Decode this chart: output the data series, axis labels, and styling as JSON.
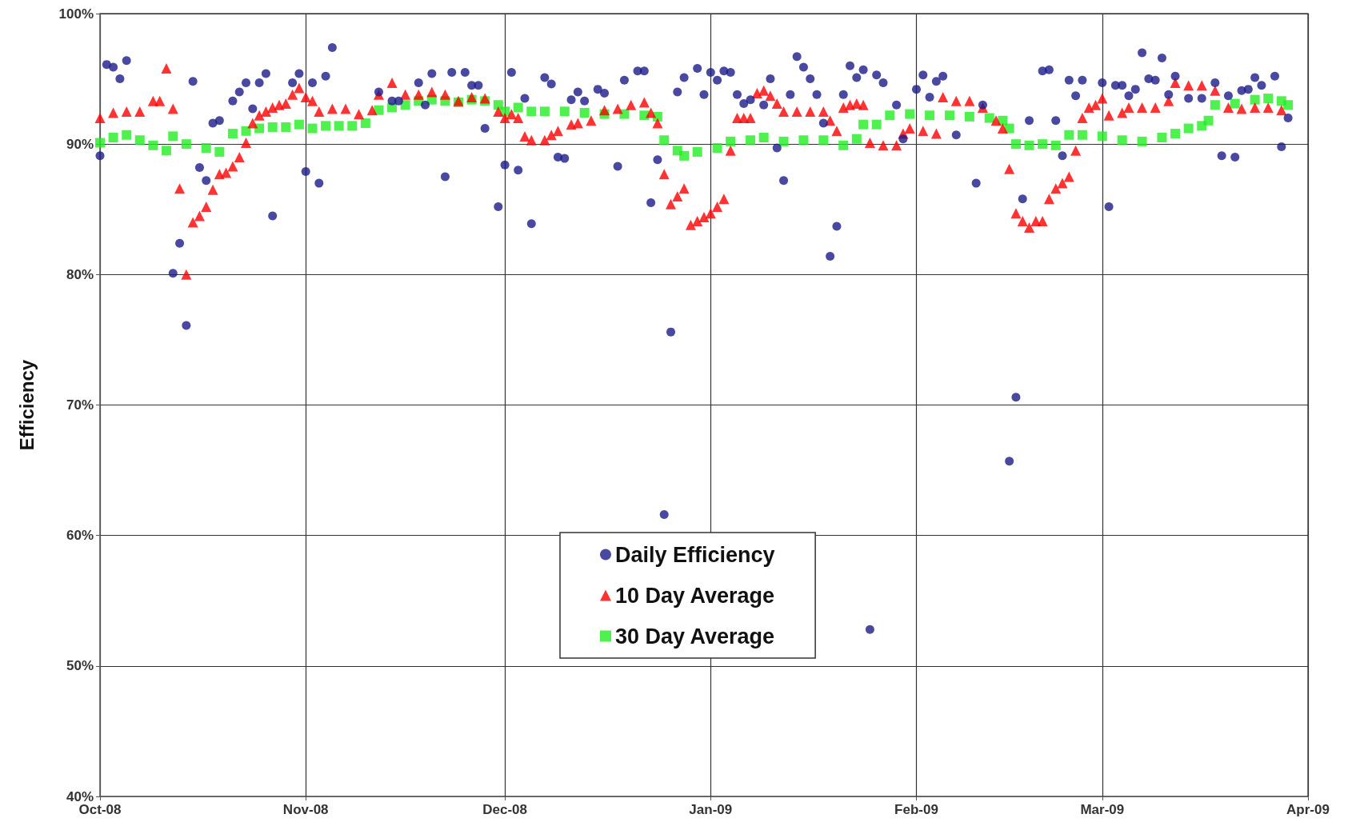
{
  "chart_data": {
    "type": "scatter",
    "ylabel": "Efficiency",
    "xlim": [
      "2008-10-01",
      "2009-04-01"
    ],
    "xticks": [
      {
        "value": "2008-10-01",
        "label": "Oct-08"
      },
      {
        "value": "2008-11-01",
        "label": "Nov-08"
      },
      {
        "value": "2008-12-01",
        "label": "Dec-08"
      },
      {
        "value": "2009-01-01",
        "label": "Jan-09"
      },
      {
        "value": "2009-02-01",
        "label": "Feb-09"
      },
      {
        "value": "2009-03-01",
        "label": "Mar-09"
      },
      {
        "value": "2009-04-01",
        "label": "Apr-09"
      }
    ],
    "ylim": [
      40,
      100
    ],
    "yticks": [
      {
        "value": 40,
        "label": "40%"
      },
      {
        "value": 50,
        "label": "50%"
      },
      {
        "value": 60,
        "label": "60%"
      },
      {
        "value": 70,
        "label": "70%"
      },
      {
        "value": 80,
        "label": "80%"
      },
      {
        "value": 90,
        "label": "90%"
      },
      {
        "value": 100,
        "label": "100%"
      }
    ],
    "grid": true,
    "legend": "bottom",
    "series": [
      {
        "name": "Daily Efficiency",
        "color": "#1c1c8a",
        "marker": "circle",
        "x": [
          "2008-10-01",
          "2008-10-02",
          "2008-10-03",
          "2008-10-04",
          "2008-10-05",
          "2008-10-12",
          "2008-10-13",
          "2008-10-14",
          "2008-10-15",
          "2008-10-16",
          "2008-10-17",
          "2008-10-18",
          "2008-10-19",
          "2008-10-21",
          "2008-10-22",
          "2008-10-23",
          "2008-10-24",
          "2008-10-25",
          "2008-10-26",
          "2008-10-27",
          "2008-10-30",
          "2008-10-31",
          "2008-11-01",
          "2008-11-02",
          "2008-11-03",
          "2008-11-04",
          "2008-11-05",
          "2008-11-12",
          "2008-11-14",
          "2008-11-15",
          "2008-11-18",
          "2008-11-19",
          "2008-11-20",
          "2008-11-22",
          "2008-11-23",
          "2008-11-25",
          "2008-11-26",
          "2008-11-27",
          "2008-11-28",
          "2008-11-30",
          "2008-12-01",
          "2008-12-02",
          "2008-12-03",
          "2008-12-04",
          "2008-12-05",
          "2008-12-07",
          "2008-12-08",
          "2008-12-09",
          "2008-12-10",
          "2008-12-11",
          "2008-12-12",
          "2008-12-13",
          "2008-12-15",
          "2008-12-16",
          "2008-12-18",
          "2008-12-19",
          "2008-12-21",
          "2008-12-22",
          "2008-12-23",
          "2008-12-24",
          "2008-12-25",
          "2008-12-26",
          "2008-12-27",
          "2008-12-28",
          "2008-12-30",
          "2008-12-31",
          "2009-01-01",
          "2009-01-02",
          "2009-01-03",
          "2009-01-04",
          "2009-01-05",
          "2009-01-06",
          "2009-01-07",
          "2009-01-09",
          "2009-01-10",
          "2009-01-11",
          "2009-01-12",
          "2009-01-13",
          "2009-01-14",
          "2009-01-15",
          "2009-01-16",
          "2009-01-17",
          "2009-01-18",
          "2009-01-19",
          "2009-01-20",
          "2009-01-21",
          "2009-01-22",
          "2009-01-23",
          "2009-01-24",
          "2009-01-25",
          "2009-01-26",
          "2009-01-27",
          "2009-01-29",
          "2009-01-30",
          "2009-02-01",
          "2009-02-02",
          "2009-02-03",
          "2009-02-04",
          "2009-02-05",
          "2009-02-07",
          "2009-02-10",
          "2009-02-11",
          "2009-02-15",
          "2009-02-16",
          "2009-02-17",
          "2009-02-18",
          "2009-02-20",
          "2009-02-21",
          "2009-02-22",
          "2009-02-23",
          "2009-02-24",
          "2009-02-25",
          "2009-02-26",
          "2009-03-01",
          "2009-03-02",
          "2009-03-03",
          "2009-03-04",
          "2009-03-05",
          "2009-03-06",
          "2009-03-07",
          "2009-03-08",
          "2009-03-09",
          "2009-03-10",
          "2009-03-11",
          "2009-03-12",
          "2009-03-14",
          "2009-03-16",
          "2009-03-18",
          "2009-03-19",
          "2009-03-20",
          "2009-03-21",
          "2009-03-22",
          "2009-03-23",
          "2009-03-24",
          "2009-03-25",
          "2009-03-27",
          "2009-03-28",
          "2009-03-29"
        ],
        "values": [
          89.1,
          96.1,
          95.9,
          95.0,
          96.4,
          80.1,
          82.4,
          76.1,
          94.8,
          88.2,
          87.2,
          91.6,
          91.8,
          93.3,
          94.0,
          94.7,
          92.7,
          94.7,
          95.4,
          84.5,
          94.7,
          95.4,
          87.9,
          94.7,
          87.0,
          95.2,
          97.4,
          94.0,
          93.3,
          93.3,
          94.7,
          93.0,
          95.4,
          87.5,
          95.5,
          95.5,
          94.5,
          94.5,
          91.2,
          85.2,
          88.4,
          95.5,
          88.0,
          93.5,
          83.9,
          95.1,
          94.6,
          89.0,
          88.9,
          93.4,
          94.0,
          93.3,
          94.2,
          93.9,
          88.3,
          94.9,
          95.6,
          95.6,
          85.5,
          88.8,
          61.6,
          75.6,
          94.0,
          95.1,
          95.8,
          93.8,
          95.5,
          94.9,
          95.6,
          95.5,
          93.8,
          93.1,
          93.4,
          93.0,
          95.0,
          89.7,
          87.2,
          93.8,
          96.7,
          95.9,
          95.0,
          93.8,
          91.6,
          81.4,
          83.7,
          93.8,
          96.0,
          95.1,
          95.7,
          52.8,
          95.3,
          94.7,
          93.0,
          90.4,
          94.2,
          95.3,
          93.6,
          94.8,
          95.2,
          90.7,
          87.0,
          93.0,
          65.7,
          70.6,
          85.8,
          91.8,
          95.6,
          95.7,
          91.8,
          89.1,
          94.9,
          93.7,
          94.9,
          94.7,
          85.2,
          94.5,
          94.5,
          93.7,
          94.2,
          97.0,
          95.0,
          94.9,
          96.6,
          93.8,
          95.2,
          93.5,
          93.5,
          94.7,
          89.1,
          93.7,
          89.0,
          94.1,
          94.2,
          95.1,
          94.5,
          95.2,
          89.8,
          92.0
        ]
      },
      {
        "name": "10 Day Average",
        "color": "#ff0000",
        "marker": "triangle",
        "x": [
          "2008-10-01",
          "2008-10-03",
          "2008-10-05",
          "2008-10-07",
          "2008-10-09",
          "2008-10-10",
          "2008-10-11",
          "2008-10-12",
          "2008-10-13",
          "2008-10-14",
          "2008-10-15",
          "2008-10-16",
          "2008-10-17",
          "2008-10-18",
          "2008-10-19",
          "2008-10-20",
          "2008-10-21",
          "2008-10-22",
          "2008-10-23",
          "2008-10-24",
          "2008-10-25",
          "2008-10-26",
          "2008-10-27",
          "2008-10-28",
          "2008-10-29",
          "2008-10-30",
          "2008-10-31",
          "2008-11-01",
          "2008-11-02",
          "2008-11-03",
          "2008-11-05",
          "2008-11-07",
          "2008-11-09",
          "2008-11-11",
          "2008-11-12",
          "2008-11-14",
          "2008-11-16",
          "2008-11-18",
          "2008-11-20",
          "2008-11-22",
          "2008-11-24",
          "2008-11-26",
          "2008-11-28",
          "2008-11-30",
          "2008-12-01",
          "2008-12-02",
          "2008-12-03",
          "2008-12-04",
          "2008-12-05",
          "2008-12-07",
          "2008-12-08",
          "2008-12-09",
          "2008-12-11",
          "2008-12-12",
          "2008-12-14",
          "2008-12-16",
          "2008-12-18",
          "2008-12-20",
          "2008-12-22",
          "2008-12-23",
          "2008-12-24",
          "2008-12-25",
          "2008-12-26",
          "2008-12-27",
          "2008-12-28",
          "2008-12-29",
          "2008-12-30",
          "2008-12-31",
          "2009-01-01",
          "2009-01-02",
          "2009-01-03",
          "2009-01-04",
          "2009-01-05",
          "2009-01-06",
          "2009-01-07",
          "2009-01-08",
          "2009-01-09",
          "2009-01-10",
          "2009-01-11",
          "2009-01-12",
          "2009-01-14",
          "2009-01-16",
          "2009-01-18",
          "2009-01-19",
          "2009-01-20",
          "2009-01-21",
          "2009-01-22",
          "2009-01-23",
          "2009-01-24",
          "2009-01-25",
          "2009-01-27",
          "2009-01-29",
          "2009-01-30",
          "2009-01-31",
          "2009-02-02",
          "2009-02-04",
          "2009-02-05",
          "2009-02-07",
          "2009-02-09",
          "2009-02-11",
          "2009-02-13",
          "2009-02-14",
          "2009-02-15",
          "2009-02-16",
          "2009-02-17",
          "2009-02-18",
          "2009-02-19",
          "2009-02-20",
          "2009-02-21",
          "2009-02-22",
          "2009-02-23",
          "2009-02-24",
          "2009-02-25",
          "2009-02-26",
          "2009-02-27",
          "2009-02-28",
          "2009-03-01",
          "2009-03-02",
          "2009-03-04",
          "2009-03-05",
          "2009-03-07",
          "2009-03-09",
          "2009-03-11",
          "2009-03-12",
          "2009-03-14",
          "2009-03-16",
          "2009-03-18",
          "2009-03-20",
          "2009-03-22",
          "2009-03-24",
          "2009-03-26",
          "2009-03-28"
        ],
        "values": [
          92.0,
          92.4,
          92.5,
          92.5,
          93.3,
          93.3,
          95.8,
          92.7,
          86.6,
          80.0,
          84.0,
          84.5,
          85.2,
          86.5,
          87.7,
          87.8,
          88.3,
          89.0,
          90.1,
          91.6,
          92.2,
          92.5,
          92.8,
          93.0,
          93.1,
          93.8,
          94.3,
          93.6,
          93.3,
          92.5,
          92.7,
          92.7,
          92.3,
          92.6,
          93.8,
          94.7,
          93.8,
          93.8,
          94.0,
          93.8,
          93.3,
          93.6,
          93.5,
          92.5,
          92.0,
          92.3,
          92.0,
          90.6,
          90.3,
          90.3,
          90.7,
          91.0,
          91.5,
          91.6,
          91.8,
          92.6,
          92.7,
          93.0,
          93.2,
          92.4,
          91.6,
          87.7,
          85.4,
          86.0,
          86.6,
          83.8,
          84.1,
          84.4,
          84.7,
          85.2,
          85.8,
          89.5,
          92.0,
          92.0,
          92.0,
          93.9,
          94.1,
          93.7,
          93.1,
          92.5,
          92.5,
          92.5,
          92.5,
          91.8,
          91.0,
          92.8,
          93.0,
          93.1,
          93.0,
          90.1,
          89.9,
          89.9,
          90.8,
          91.2,
          91.0,
          90.8,
          93.6,
          93.3,
          93.3,
          92.8,
          91.8,
          91.2,
          88.1,
          84.7,
          84.1,
          83.6,
          84.1,
          84.1,
          85.8,
          86.6,
          87.0,
          87.5,
          89.5,
          92.0,
          92.8,
          93.0,
          93.5,
          92.2,
          92.4,
          92.8,
          92.8,
          92.8,
          93.3,
          94.7,
          94.5,
          94.5,
          94.1,
          92.8,
          92.7,
          92.8,
          92.8,
          92.6
        ]
      },
      {
        "name": "30 Day Average",
        "color": "#22ee22",
        "marker": "square",
        "x": [
          "2008-10-01",
          "2008-10-03",
          "2008-10-05",
          "2008-10-07",
          "2008-10-09",
          "2008-10-11",
          "2008-10-12",
          "2008-10-14",
          "2008-10-17",
          "2008-10-19",
          "2008-10-21",
          "2008-10-23",
          "2008-10-25",
          "2008-10-27",
          "2008-10-29",
          "2008-10-31",
          "2008-11-02",
          "2008-11-04",
          "2008-11-06",
          "2008-11-08",
          "2008-11-10",
          "2008-11-12",
          "2008-11-14",
          "2008-11-16",
          "2008-11-18",
          "2008-11-20",
          "2008-11-22",
          "2008-11-24",
          "2008-11-26",
          "2008-11-28",
          "2008-11-30",
          "2008-12-01",
          "2008-12-03",
          "2008-12-05",
          "2008-12-07",
          "2008-12-10",
          "2008-12-13",
          "2008-12-16",
          "2008-12-19",
          "2008-12-22",
          "2008-12-24",
          "2008-12-25",
          "2008-12-27",
          "2008-12-28",
          "2008-12-30",
          "2009-01-02",
          "2009-01-04",
          "2009-01-07",
          "2009-01-09",
          "2009-01-12",
          "2009-01-15",
          "2009-01-18",
          "2009-01-21",
          "2009-01-23",
          "2009-01-24",
          "2009-01-26",
          "2009-01-28",
          "2009-01-31",
          "2009-02-03",
          "2009-02-06",
          "2009-02-09",
          "2009-02-12",
          "2009-02-14",
          "2009-02-15",
          "2009-02-16",
          "2009-02-18",
          "2009-02-20",
          "2009-02-22",
          "2009-02-24",
          "2009-02-26",
          "2009-03-01",
          "2009-03-04",
          "2009-03-07",
          "2009-03-10",
          "2009-03-12",
          "2009-03-14",
          "2009-03-16",
          "2009-03-17",
          "2009-03-18",
          "2009-03-21",
          "2009-03-24",
          "2009-03-26",
          "2009-03-28",
          "2009-03-29"
        ],
        "values": [
          90.1,
          90.5,
          90.7,
          90.3,
          89.9,
          89.5,
          90.6,
          90.0,
          89.7,
          89.4,
          90.8,
          91.0,
          91.2,
          91.3,
          91.3,
          91.5,
          91.2,
          91.4,
          91.4,
          91.4,
          91.6,
          92.6,
          92.8,
          93.0,
          93.3,
          93.4,
          93.3,
          93.2,
          93.4,
          93.3,
          93.0,
          92.5,
          92.8,
          92.5,
          92.5,
          92.5,
          92.4,
          92.3,
          92.3,
          92.2,
          92.1,
          90.3,
          89.5,
          89.1,
          89.4,
          89.7,
          90.2,
          90.3,
          90.5,
          90.2,
          90.3,
          90.3,
          89.9,
          90.4,
          91.5,
          91.5,
          92.2,
          92.3,
          92.2,
          92.2,
          92.1,
          92.0,
          91.8,
          91.2,
          90.0,
          89.9,
          90.0,
          89.9,
          90.7,
          90.7,
          90.6,
          90.3,
          90.2,
          90.5,
          90.8,
          91.2,
          91.4,
          91.8,
          93.0,
          93.1,
          93.4,
          93.5,
          93.3,
          93.0
        ]
      }
    ]
  }
}
